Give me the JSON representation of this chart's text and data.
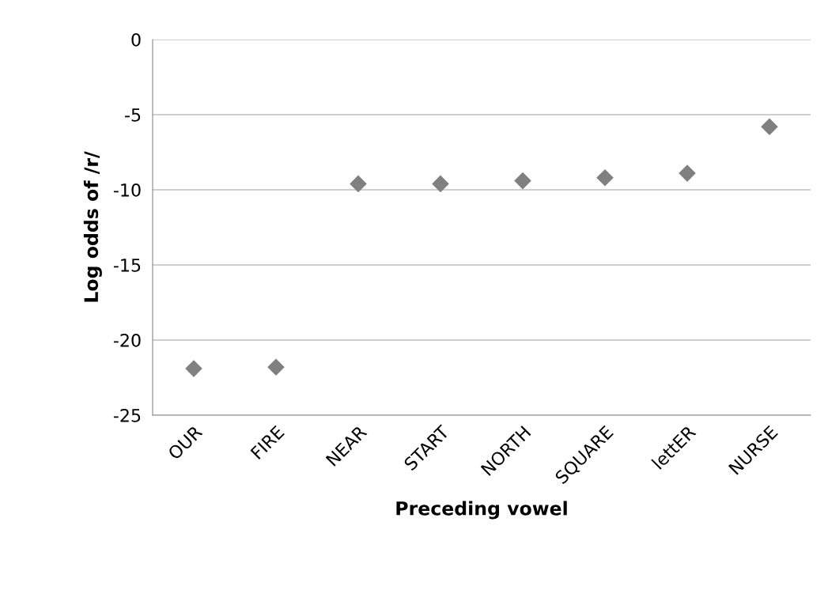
{
  "chart_data": {
    "type": "scatter",
    "xlabel": "Preceding vowel",
    "ylabel": "Log odds of /r/",
    "categories": [
      "OUR",
      "FIRE",
      "NEAR",
      "START",
      "NORTH",
      "SQUARE",
      "lettER",
      "NURSE"
    ],
    "values": [
      -21.9,
      -21.8,
      -9.6,
      -9.6,
      -9.4,
      -9.2,
      -8.9,
      -5.8
    ],
    "color": "#808080",
    "marker": "diamond",
    "ylim": [
      -25,
      0
    ],
    "yticks": [
      -25,
      -20,
      -15,
      -10,
      -5,
      0
    ],
    "grid": "y",
    "legend": false
  }
}
